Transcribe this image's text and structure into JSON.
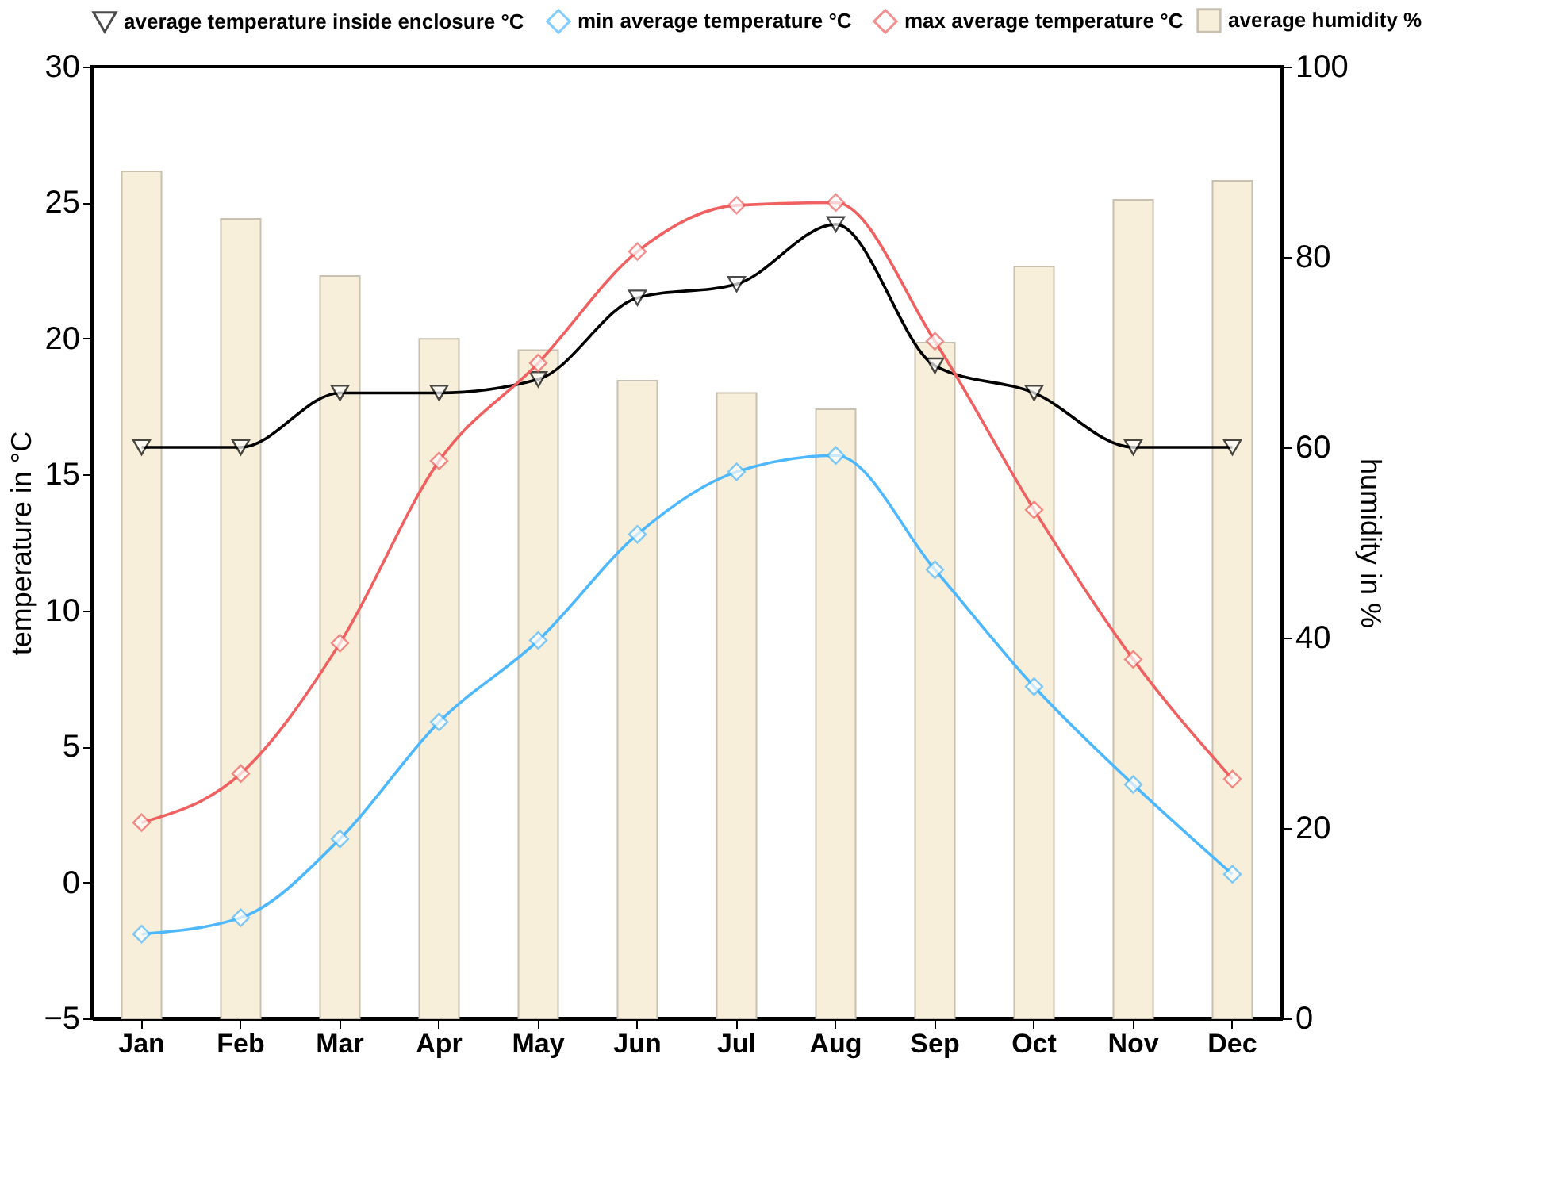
{
  "chart_data": {
    "type": "line",
    "categories": [
      "Jan",
      "Feb",
      "Mar",
      "Apr",
      "May",
      "Jun",
      "Jul",
      "Aug",
      "Sep",
      "Oct",
      "Nov",
      "Dec"
    ],
    "ylabel": "temperature in °C",
    "y2label": "humidity in %",
    "ylim": [
      -5,
      30
    ],
    "yticks": [
      -5,
      0,
      5,
      10,
      15,
      20,
      25,
      30
    ],
    "y2lim": [
      0,
      100
    ],
    "y2ticks": [
      0,
      20,
      40,
      60,
      80,
      100
    ],
    "grid": false,
    "legend": "top",
    "series": [
      {
        "name": "average humidity %",
        "type": "bar",
        "axis": "y2",
        "color": "#f7efd9",
        "values": [
          89,
          84,
          78,
          71.4,
          70.2,
          67,
          65.7,
          64,
          71,
          79,
          86,
          88
        ]
      },
      {
        "name": "average temperature inside enclosure °C",
        "marker": "triangle",
        "line_style": "solid",
        "color": "#000000",
        "values": [
          16,
          16,
          18,
          18,
          18.5,
          21.5,
          22,
          24.2,
          19,
          18,
          16,
          16
        ]
      },
      {
        "name": "min average temperature °C",
        "marker": "diamond",
        "line_style": "solid",
        "color": "#4db8ff",
        "values": [
          -1.9,
          -1.3,
          1.6,
          5.9,
          8.9,
          12.8,
          15.1,
          15.7,
          11.5,
          7.2,
          3.6,
          0.3
        ]
      },
      {
        "name": "max average temperature °C",
        "marker": "diamond",
        "line_style": "solid",
        "color": "#f06060",
        "values": [
          2.2,
          4.0,
          8.8,
          15.5,
          19.1,
          23.2,
          24.9,
          25.0,
          19.9,
          13.7,
          8.2,
          3.8
        ]
      }
    ]
  }
}
